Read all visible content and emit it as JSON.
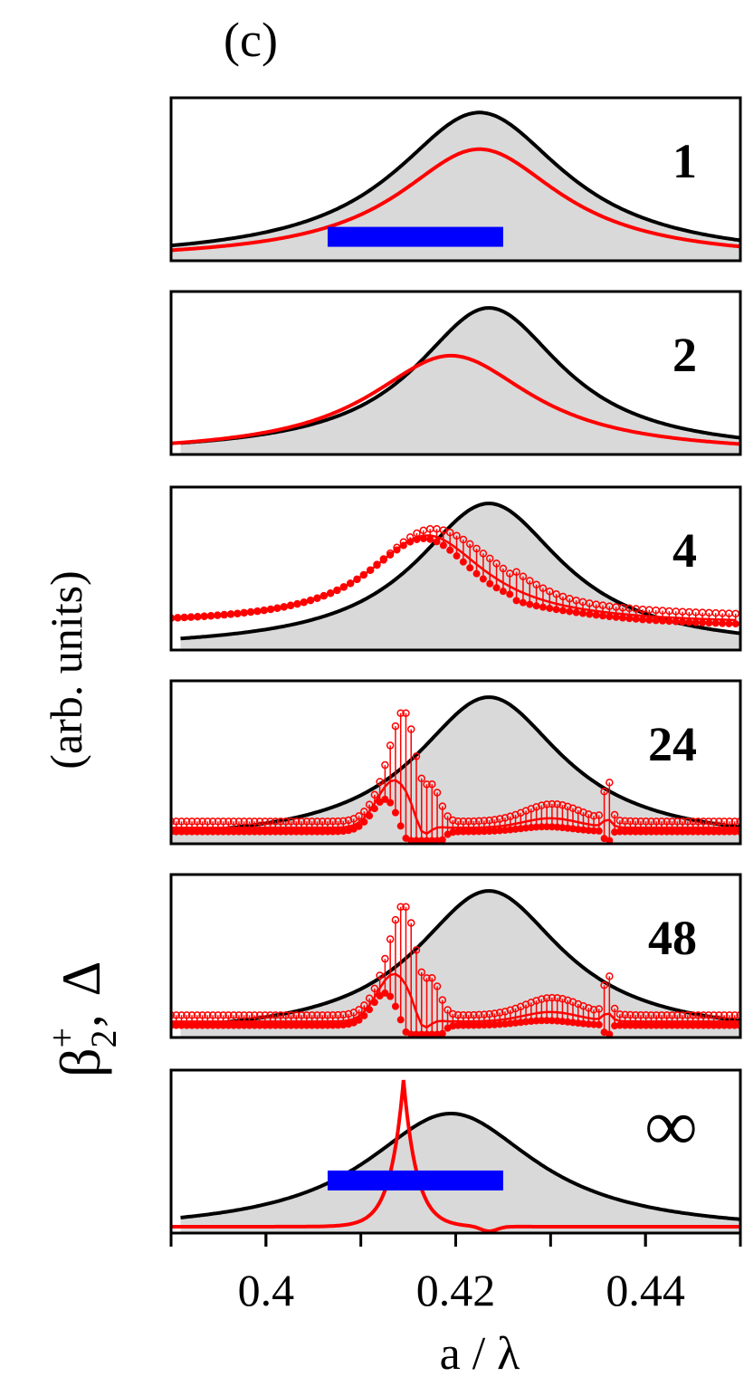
{
  "figure": {
    "panel_label": "(c)",
    "ylabel_main": "(arb. units)",
    "ylabel_beta": "β",
    "ylabel_beta_sub": "2",
    "ylabel_beta_sup": "+",
    "ylabel_sep": ",",
    "ylabel_delta": "Δ"
  },
  "colors": {
    "fill": "#d9d9d9",
    "black_curve": "#000000",
    "red_curve": "#ff0000",
    "bar": "#0000ff"
  },
  "chart_data": {
    "type": "line",
    "xlabel": "a / λ",
    "xlim": [
      0.39,
      0.45
    ],
    "ylim": [
      0,
      1
    ],
    "xticks": [
      0.4,
      0.42,
      0.44
    ],
    "xtick_labels": [
      "0.4",
      "0.42",
      "0.44"
    ],
    "x_minor_step": 0.01,
    "panels": [
      {
        "label": "1",
        "black": {
          "center": 0.4225,
          "width": 0.011,
          "base": 0.0,
          "amp": 0.93,
          "start": 0.39
        },
        "red": {
          "type": "lorentz",
          "center": 0.4225,
          "width": 0.0105,
          "base": 0.0,
          "amp": 0.7,
          "start": 0.39
        },
        "bar": [
          0.4065,
          0.425
        ],
        "bar_level": 0.15
      },
      {
        "label": "2",
        "black": {
          "center": 0.4235,
          "width": 0.0095,
          "base": 0.0,
          "amp": 0.92,
          "start": 0.391
        },
        "red": {
          "type": "lorentz",
          "center": 0.4195,
          "width": 0.0105,
          "base": 0.0,
          "amp": 0.62,
          "start": 0.39
        }
      },
      {
        "label": "4",
        "black": {
          "center": 0.4235,
          "width": 0.0095,
          "base": 0.0,
          "amp": 0.92,
          "start": 0.391
        },
        "red": {
          "type": "lorentz_dots",
          "center": 0.417,
          "width": 0.0075,
          "base": 0.16,
          "amp": 0.56,
          "dx": 0.0007,
          "band": [
            0.411,
            0.45
          ],
          "spread": 0.1,
          "start": 0.39
        }
      },
      {
        "label": "24",
        "black": {
          "center": 0.4235,
          "width": 0.0095,
          "base": 0.0,
          "amp": 0.92,
          "start": 0.39
        },
        "red": {
          "type": "resonant_dots",
          "base": 0.1,
          "dx": 0.00055,
          "start": 0.39,
          "band": [
            0.408,
            0.45
          ]
        }
      },
      {
        "label": "48",
        "black": {
          "center": 0.4235,
          "width": 0.0095,
          "base": 0.0,
          "amp": 0.92,
          "start": 0.391
        },
        "red": {
          "type": "resonant_dots",
          "base": 0.1,
          "dx": 0.00055,
          "start": 0.39,
          "band": [
            0.408,
            0.45
          ]
        }
      },
      {
        "label": "∞",
        "black": {
          "center": 0.4195,
          "width": 0.011,
          "base": 0.0,
          "amp": 0.75,
          "start": 0.391
        },
        "red": {
          "type": "sharp",
          "center": 0.4145,
          "width": 0.0014,
          "base": 0.04,
          "amp": 0.92,
          "start": 0.39
        },
        "bar": [
          0.4065,
          0.425
        ],
        "bar_level": 0.33
      }
    ]
  }
}
